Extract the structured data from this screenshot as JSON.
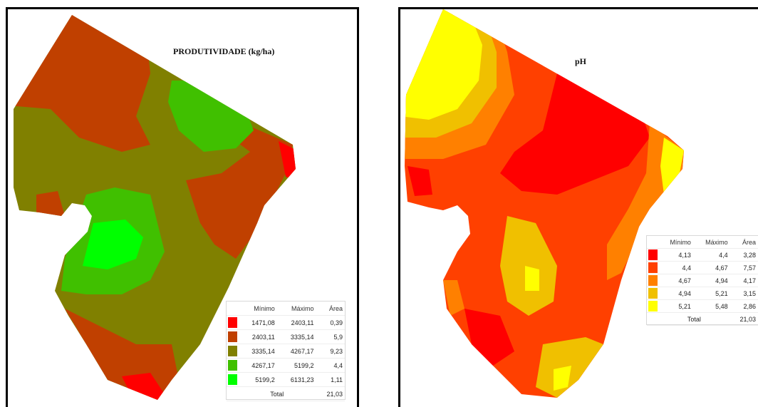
{
  "left_map": {
    "title": "PRODUTIVIDADE (kg/ha)",
    "legend": {
      "headers": [
        "Mínimo",
        "Máximo",
        "Área"
      ],
      "rows": [
        {
          "min": "1471,08",
          "max": "2403,11",
          "area": "0,39",
          "color": "#ff0000"
        },
        {
          "min": "2403,11",
          "max": "3335,14",
          "area": "5,9",
          "color": "#c04000"
        },
        {
          "min": "3335,14",
          "max": "4267,17",
          "area": "9,23",
          "color": "#808000"
        },
        {
          "min": "4267,17",
          "max": "5199,2",
          "area": "4,4",
          "color": "#40c000"
        },
        {
          "min": "5199,2",
          "max": "6131,23",
          "area": "1,11",
          "color": "#00ff00"
        }
      ],
      "total_label": "Total",
      "total_area": "21,03"
    }
  },
  "right_map": {
    "title": "pH",
    "legend": {
      "headers": [
        "Mínimo",
        "Máximo",
        "Área"
      ],
      "rows": [
        {
          "min": "4,13",
          "max": "4,4",
          "area": "3,28",
          "color": "#ff0000"
        },
        {
          "min": "4,4",
          "max": "4,67",
          "area": "7,57",
          "color": "#ff4000"
        },
        {
          "min": "4,67",
          "max": "4,94",
          "area": "4,17",
          "color": "#ff8000"
        },
        {
          "min": "4,94",
          "max": "5,21",
          "area": "3,15",
          "color": "#f0c000"
        },
        {
          "min": "5,21",
          "max": "5,48",
          "area": "2,86",
          "color": "#ffff00"
        }
      ],
      "total_label": "Total",
      "total_area": "21,03"
    }
  }
}
